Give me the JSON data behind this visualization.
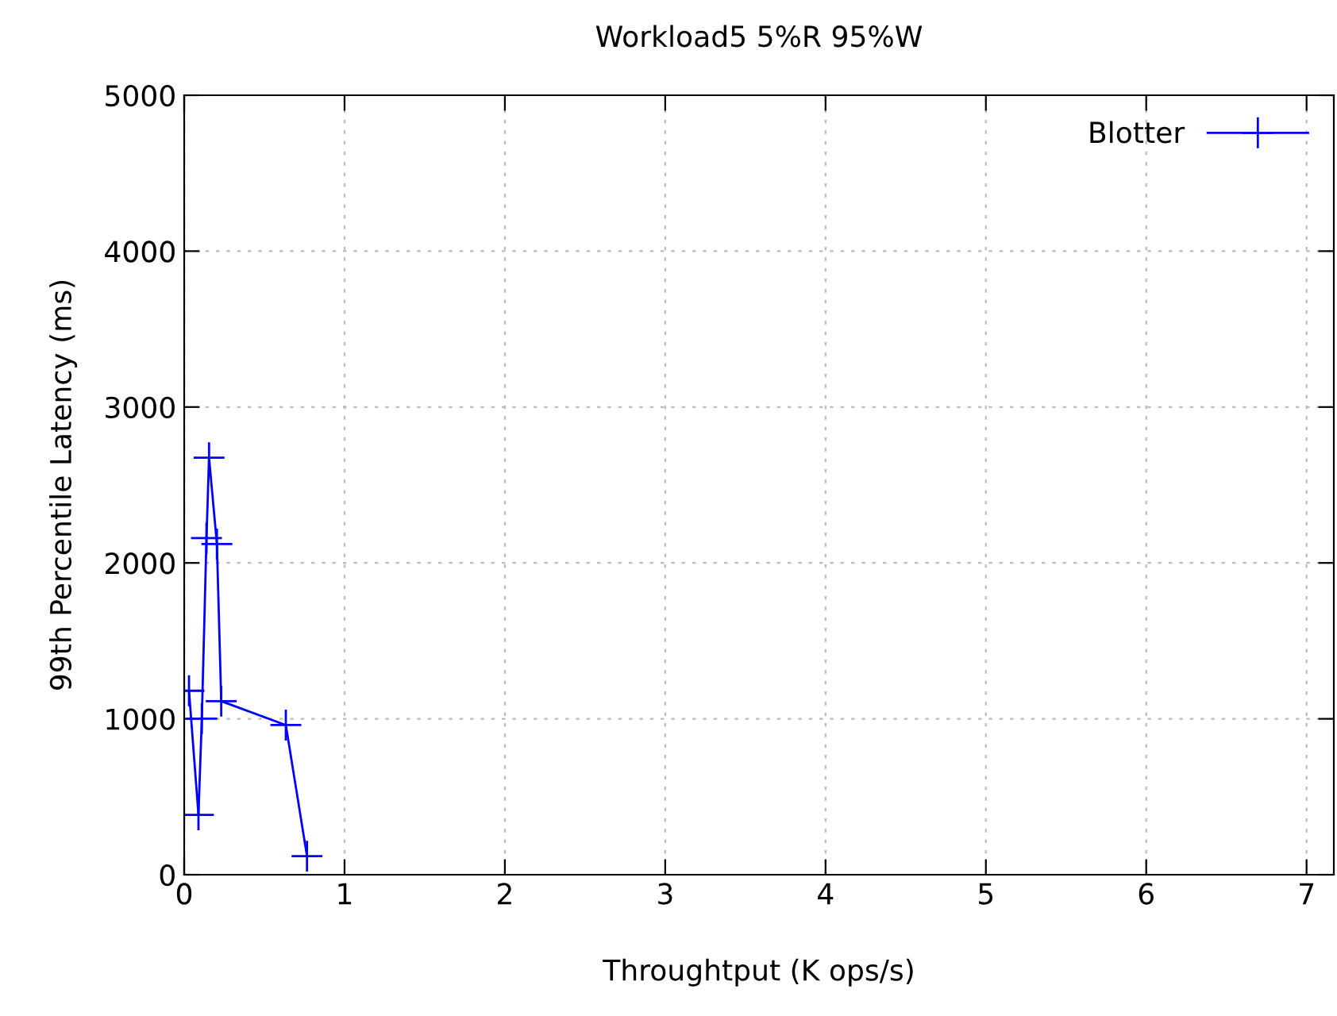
{
  "chart_data": {
    "type": "line",
    "title": "Workload5 5%R 95%W",
    "xlabel": "Throughtput (K ops/s)",
    "ylabel": "99th Percentile Latency (ms)",
    "series": [
      {
        "name": "Blotter",
        "color": "#0000ff",
        "x": [
          0.03,
          0.089,
          0.11,
          0.139,
          0.155,
          0.204,
          0.231,
          0.634,
          0.766
        ],
        "values": [
          1180,
          384,
          1001,
          2159,
          2675,
          2121,
          1113,
          960,
          119
        ]
      }
    ],
    "xlim": [
      0,
      7.17
    ],
    "xticks": [
      0,
      1,
      2,
      3,
      4,
      5,
      6,
      7
    ],
    "ylim": [
      0,
      5000
    ],
    "yticks": [
      0,
      1000,
      2000,
      3000,
      4000,
      5000
    ],
    "grid": true,
    "legend": "top right",
    "marker": "cross",
    "line_style": "solid"
  }
}
